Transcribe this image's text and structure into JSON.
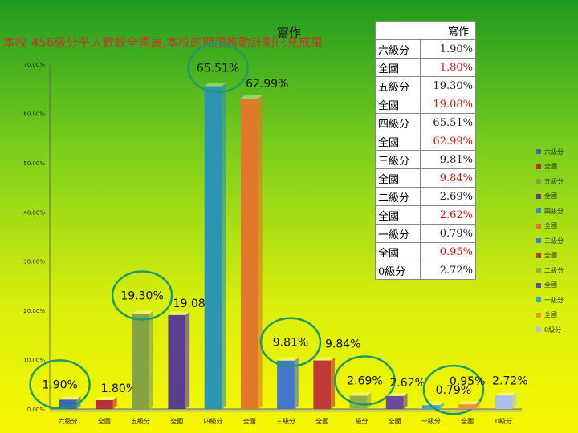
{
  "headline": "本校 456級分平人數較全國高,本校的閱讀推動計劃已見成果",
  "table": {
    "header": "寫作",
    "rows": [
      {
        "label": "六級分",
        "value": "1.90%"
      },
      {
        "label": "全國",
        "value": "1.80%"
      },
      {
        "label": "五級分",
        "value": "19.30%"
      },
      {
        "label": "全國",
        "value": "19.08%"
      },
      {
        "label": "四級分",
        "value": "65.51%"
      },
      {
        "label": "全國",
        "value": "62.99%"
      },
      {
        "label": "三級分",
        "value": "9.81%"
      },
      {
        "label": "全國",
        "value": "9.84%"
      },
      {
        "label": "二級分",
        "value": "2.69%"
      },
      {
        "label": "全國",
        "value": "2.62%"
      },
      {
        "label": "一級分",
        "value": "0.79%"
      },
      {
        "label": "全國",
        "value": "0.95%"
      },
      {
        "label": "0級分",
        "value": "2.72%"
      }
    ]
  },
  "highlight_color": "#1e9a6a",
  "chart_data": {
    "type": "bar",
    "title": "寫作",
    "categories": [
      "六級分",
      "全國",
      "五級分",
      "全國",
      "四級分",
      "全國",
      "三級分",
      "全國",
      "二級分",
      "全國",
      "一級分",
      "全國",
      "0級分"
    ],
    "values": [
      1.9,
      1.8,
      19.3,
      19.08,
      65.51,
      62.99,
      9.81,
      9.84,
      2.69,
      2.62,
      0.79,
      0.95,
      2.72
    ],
    "data_labels": [
      "1.90%",
      "1.80%",
      "19.30%",
      "19.08%",
      "65.51%",
      "62.99%",
      "9.81%",
      "9.84%",
      "2.69%",
      "2.62%",
      "0.79%",
      "0.95%",
      "2.72%"
    ],
    "colors": [
      "#3b67b5",
      "#b5332e",
      "#86a343",
      "#5b3f8f",
      "#2e95b0",
      "#e07a2a",
      "#4478cc",
      "#c23a36",
      "#8fb04a",
      "#6a4a9a",
      "#3aa9c0",
      "#f09040",
      "#a9c0e8"
    ],
    "ylim": [
      0,
      70
    ],
    "yticks": [
      "0.00%",
      "10.00%",
      "20.00%",
      "30.00%",
      "40.00%",
      "50.00%",
      "60.00%",
      "70.00%"
    ],
    "legend": [
      "六級分",
      "全國",
      "五級分",
      "全國",
      "四級分",
      "全國",
      "三級分",
      "全國",
      "二級分",
      "全國",
      "一級分",
      "全國",
      "0級分"
    ],
    "legend_position": "right",
    "highlighted_categories": [
      "六級分",
      "五級分",
      "四級分",
      "三級分",
      "二級分",
      "一級分"
    ],
    "grid": false
  }
}
